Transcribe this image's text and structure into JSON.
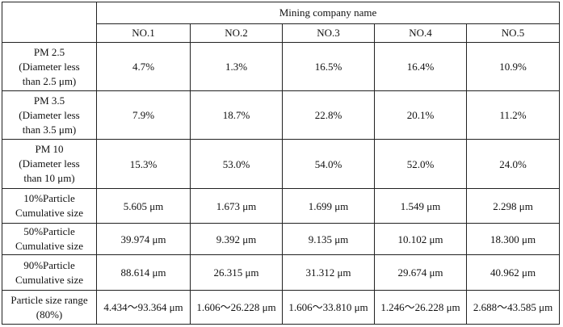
{
  "table": {
    "group_header": "Mining company name",
    "columns": [
      "NO.1",
      "NO.2",
      "NO.3",
      "NO.4",
      "NO.5"
    ],
    "rows": [
      {
        "label_lines": [
          "PM 2.5",
          "(Diameter less",
          "than 2.5 μm)"
        ],
        "values": [
          "4.7%",
          "1.3%",
          "16.5%",
          "16.4%",
          "10.9%"
        ]
      },
      {
        "label_lines": [
          "PM 3.5",
          "(Diameter less",
          "than 3.5 μm)"
        ],
        "values": [
          "7.9%",
          "18.7%",
          "22.8%",
          "20.1%",
          "11.2%"
        ]
      },
      {
        "label_lines": [
          "PM 10",
          "(Diameter less",
          "than 10 μm)"
        ],
        "values": [
          "15.3%",
          "53.0%",
          "54.0%",
          "52.0%",
          "24.0%"
        ]
      },
      {
        "label_lines": [
          "10%Particle",
          "Cumulative size"
        ],
        "values": [
          "5.605 μm",
          "1.673 μm",
          "1.699 μm",
          "1.549 μm",
          "2.298 μm"
        ]
      },
      {
        "label_lines": [
          "50%Particle",
          "Cumulative size"
        ],
        "values": [
          "39.974 μm",
          "9.392 μm",
          "9.135 μm",
          "10.102 μm",
          "18.300 μm"
        ]
      },
      {
        "label_lines": [
          "90%Particle",
          "Cumulative size"
        ],
        "values": [
          "88.614 μm",
          "26.315 μm",
          "31.312 μm",
          "29.674 μm",
          "40.962 μm"
        ]
      },
      {
        "label_lines": [
          "Particle size range",
          "(80%)"
        ],
        "values": [
          "4.434～93.364 μm",
          "1.606～26.228 μm",
          "1.606～33.810 μm",
          "1.246～26.228 μm",
          "2.688～43.585 μm"
        ]
      }
    ]
  }
}
